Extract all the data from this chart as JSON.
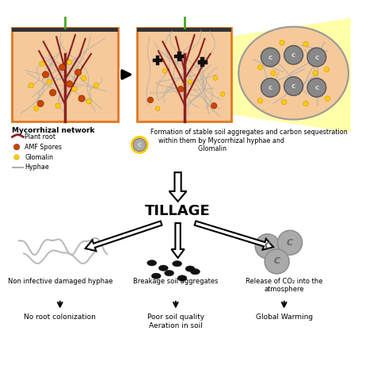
{
  "background_color": "#ffffff",
  "soil_color": "#f5c99a",
  "soil_border_color": "#e07820",
  "root_color": "#8b2020",
  "hyphae_color": "#b0b0b0",
  "amf_spore_color": "#cc4400",
  "glomalin_color": "#ffcc00",
  "leaf_color": "#44aa22",
  "leaf_edge_color": "#2a7a10",
  "stem_color": "#44aa22",
  "aggregate_fill": "#222222",
  "aggregate_border": "#000000",
  "ellipse_color": "#f5c99a",
  "ellipse_border": "#999999",
  "cone_color": "#ffffa0",
  "c_agg_fill": "#888888",
  "c_agg_border": "#555555",
  "c_text_color": "#cccccc",
  "co2_fill": "#aaaaaa",
  "co2_border": "#888888",
  "soil_dot_color": "#111111",
  "arrow_face": "#ffffff",
  "arrow_edge": "#000000",
  "tillage_text": "TILLAGE",
  "legend_title": "Mycorrhizal network",
  "legend_items": [
    "Plant root",
    "AMF Spores",
    "Glomalin",
    "Hyphae"
  ],
  "legend_colors": [
    "#8b2020",
    "#cc4400",
    "#ffcc00",
    "#b0b0b0"
  ],
  "text_formation": "Formation of stable soil aggregates and carbon sequestration\n    within them by Mycorrhizal hyphae and\n                        Glomalin",
  "text_hyphae": "Non infective damaged hyphae",
  "text_hyphae_result": "No root colonization",
  "text_breakage": "Breakage soil aggregates",
  "text_breakage_result": "Poor soil quality\nAeration in soil",
  "text_co2": "Release of CO₂ into the\natmosphere",
  "text_co2_result": "Global Warming",
  "fig_w": 4.77,
  "fig_h": 4.8,
  "dpi": 100
}
